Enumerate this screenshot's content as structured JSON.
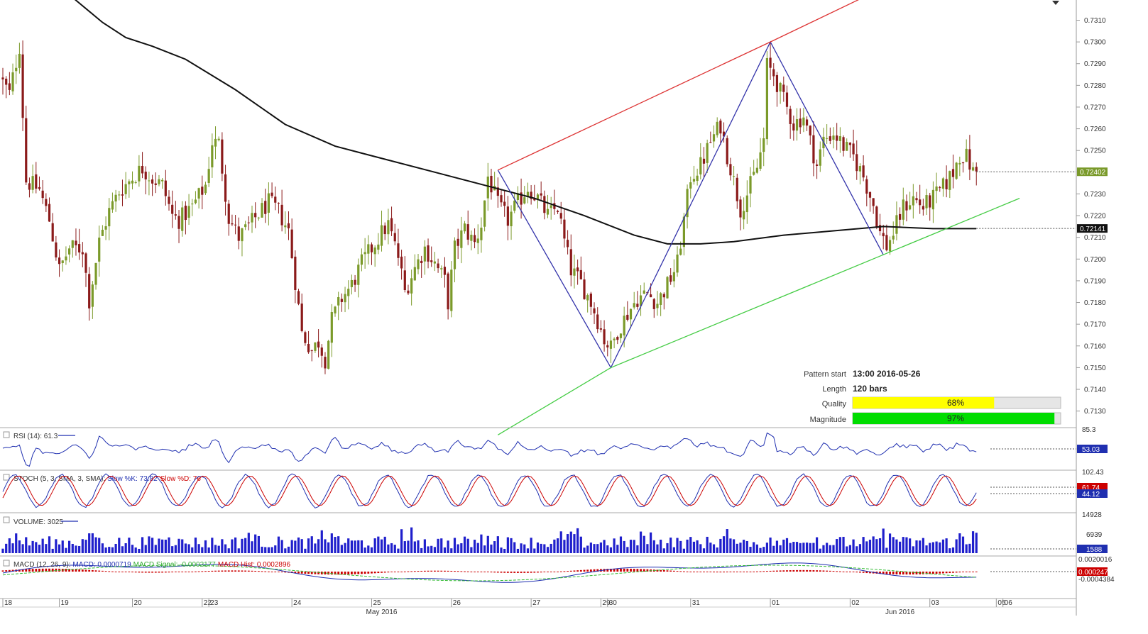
{
  "chart_data": {
    "type": "candlestick",
    "price_axis": {
      "ticks": [
        "0.7310",
        "0.7300",
        "0.7290",
        "0.7280",
        "0.7270",
        "0.7260",
        "0.7250",
        "0.7230",
        "0.7220",
        "0.7210",
        "0.7200",
        "0.7190",
        "0.7180",
        "0.7170",
        "0.7160",
        "0.7150",
        "0.7140",
        "0.7130"
      ],
      "range": [
        0.7124,
        0.7318
      ],
      "last_price": "0.72402",
      "ma_value": "0.72141"
    },
    "time_axis": {
      "day_labels": [
        {
          "label": "18",
          "bar": 0
        },
        {
          "label": "19",
          "bar": 17
        },
        {
          "label": "20",
          "bar": 39
        },
        {
          "label": "22",
          "bar": 60
        },
        {
          "label": "23",
          "bar": 62
        },
        {
          "label": "24",
          "bar": 87
        },
        {
          "label": "25",
          "bar": 111
        },
        {
          "label": "26",
          "bar": 135
        },
        {
          "label": "27",
          "bar": 159
        },
        {
          "label": "29",
          "bar": 180
        },
        {
          "label": "30",
          "bar": 182
        },
        {
          "label": "31",
          "bar": 207
        },
        {
          "label": "01",
          "bar": 231
        },
        {
          "label": "02",
          "bar": 255
        },
        {
          "label": "03",
          "bar": 279
        },
        {
          "label": "05",
          "bar": 299
        },
        {
          "label": "06",
          "bar": 301
        }
      ],
      "month_labels": [
        {
          "label": "May 2016",
          "bar": 114
        },
        {
          "label": "Jun 2016",
          "bar": 270
        }
      ],
      "total_bars": 313
    },
    "price_path": [
      [
        0,
        0.7284
      ],
      [
        3,
        0.7276
      ],
      [
        6,
        0.7298
      ],
      [
        8,
        0.7236
      ],
      [
        12,
        0.7232
      ],
      [
        15,
        0.7218
      ],
      [
        18,
        0.7195
      ],
      [
        21,
        0.7205
      ],
      [
        25,
        0.7205
      ],
      [
        27,
        0.7181
      ],
      [
        30,
        0.7208
      ],
      [
        33,
        0.7222
      ],
      [
        36,
        0.7231
      ],
      [
        39,
        0.7236
      ],
      [
        43,
        0.7242
      ],
      [
        46,
        0.7237
      ],
      [
        49,
        0.7234
      ],
      [
        52,
        0.722
      ],
      [
        54,
        0.7218
      ],
      [
        58,
        0.7224
      ],
      [
        62,
        0.7234
      ],
      [
        64,
        0.7254
      ],
      [
        66,
        0.7253
      ],
      [
        69,
        0.7219
      ],
      [
        72,
        0.721
      ],
      [
        75,
        0.7215
      ],
      [
        78,
        0.7221
      ],
      [
        81,
        0.7226
      ],
      [
        84,
        0.7222
      ],
      [
        87,
        0.7213
      ],
      [
        89,
        0.719
      ],
      [
        91,
        0.7166
      ],
      [
        94,
        0.7158
      ],
      [
        96,
        0.7162
      ],
      [
        98,
        0.7154
      ],
      [
        100,
        0.7172
      ],
      [
        103,
        0.7182
      ],
      [
        106,
        0.7188
      ],
      [
        109,
        0.7198
      ],
      [
        112,
        0.7205
      ],
      [
        115,
        0.7212
      ],
      [
        117,
        0.7216
      ],
      [
        120,
        0.7201
      ],
      [
        122,
        0.7185
      ],
      [
        125,
        0.7196
      ],
      [
        128,
        0.7205
      ],
      [
        131,
        0.7198
      ],
      [
        134,
        0.719
      ],
      [
        135,
        0.718
      ],
      [
        137,
        0.7205
      ],
      [
        140,
        0.7214
      ],
      [
        143,
        0.7207
      ],
      [
        145,
        0.7216
      ],
      [
        147,
        0.7238
      ],
      [
        150,
        0.7225
      ],
      [
        153,
        0.7218
      ],
      [
        156,
        0.7226
      ],
      [
        159,
        0.7233
      ],
      [
        162,
        0.7228
      ],
      [
        165,
        0.722
      ],
      [
        168,
        0.7224
      ],
      [
        170,
        0.7208
      ],
      [
        172,
        0.7195
      ],
      [
        175,
        0.7189
      ],
      [
        178,
        0.718
      ],
      [
        180,
        0.7172
      ],
      [
        182,
        0.7163
      ],
      [
        184,
        0.7159
      ],
      [
        186,
        0.7167
      ],
      [
        189,
        0.7175
      ],
      [
        192,
        0.7182
      ],
      [
        195,
        0.7184
      ],
      [
        198,
        0.718
      ],
      [
        201,
        0.7188
      ],
      [
        204,
        0.7198
      ],
      [
        206,
        0.7218
      ],
      [
        208,
        0.7238
      ],
      [
        211,
        0.7243
      ],
      [
        214,
        0.7254
      ],
      [
        217,
        0.7262
      ],
      [
        219,
        0.7248
      ],
      [
        221,
        0.7236
      ],
      [
        223,
        0.7223
      ],
      [
        225,
        0.723
      ],
      [
        228,
        0.7242
      ],
      [
        230,
        0.7255
      ],
      [
        231,
        0.7289
      ],
      [
        233,
        0.7285
      ],
      [
        236,
        0.7273
      ],
      [
        239,
        0.7262
      ],
      [
        242,
        0.7266
      ],
      [
        244,
        0.7254
      ],
      [
        246,
        0.7243
      ],
      [
        248,
        0.7255
      ],
      [
        251,
        0.7258
      ],
      [
        254,
        0.7252
      ],
      [
        257,
        0.7247
      ],
      [
        260,
        0.7238
      ],
      [
        263,
        0.7225
      ],
      [
        265,
        0.7212
      ],
      [
        267,
        0.7206
      ],
      [
        269,
        0.7212
      ],
      [
        272,
        0.7224
      ],
      [
        275,
        0.7228
      ],
      [
        278,
        0.7224
      ],
      [
        281,
        0.7228
      ],
      [
        284,
        0.7233
      ],
      [
        287,
        0.724
      ],
      [
        289,
        0.7248
      ],
      [
        291,
        0.7247
      ],
      [
        293,
        0.724
      ]
    ],
    "sma_path": [
      [
        19,
        0.7323
      ],
      [
        30,
        0.7309
      ],
      [
        37,
        0.7302
      ],
      [
        45,
        0.7298
      ],
      [
        55,
        0.7292
      ],
      [
        70,
        0.7278
      ],
      [
        85,
        0.7262
      ],
      [
        100,
        0.7252
      ],
      [
        115,
        0.7246
      ],
      [
        130,
        0.724
      ],
      [
        145,
        0.7234
      ],
      [
        160,
        0.7228
      ],
      [
        175,
        0.722
      ],
      [
        190,
        0.7211
      ],
      [
        200,
        0.7207
      ],
      [
        210,
        0.7207
      ],
      [
        220,
        0.7208
      ],
      [
        235,
        0.7211
      ],
      [
        250,
        0.7213
      ],
      [
        265,
        0.7215
      ],
      [
        280,
        0.7214
      ],
      [
        293,
        0.7214
      ]
    ],
    "pattern": {
      "zigzag": [
        [
          149,
          0.7241
        ],
        [
          183,
          0.715
        ],
        [
          231,
          0.73
        ],
        [
          265,
          0.7202
        ]
      ],
      "resistance_line": [
        [
          149,
          0.7241
        ],
        [
          231,
          0.73
        ],
        [
          261,
          0.7322
        ]
      ],
      "support_line": [
        [
          149,
          0.7119
        ],
        [
          183,
          0.715
        ],
        [
          265,
          0.7202
        ],
        [
          306,
          0.7228
        ]
      ]
    },
    "info_box": {
      "pattern_start_label": "Pattern start",
      "pattern_start_value": "13:00 2016-05-26",
      "length_label": "Length",
      "length_value": "120 bars",
      "quality_label": "Quality",
      "quality_value": "68%",
      "quality_fraction": 0.68,
      "magnitude_label": "Magnitude",
      "magnitude_value": "97%",
      "magnitude_fraction": 0.97
    },
    "panels": {
      "rsi": {
        "label_name": "RSI (14): ",
        "label_value": "61.3",
        "axis_top": "85.3",
        "value_tag": "53.03"
      },
      "stoch": {
        "label_name": "STOCH (5, 3, SMA, 3, SMA): ",
        "k_text": "Slow %K: 73.82",
        "d_text": "Slow %D: 76",
        "axis_top": "102.43",
        "tag_d": "61.74",
        "tag_k": "44.12"
      },
      "volume": {
        "label_name": "VOLUME: ",
        "label_value": "3025",
        "axis_top": "14928",
        "axis_mid": "6939",
        "value_tag": "1588"
      },
      "macd": {
        "label_name": "MACD (12, 26, 9): ",
        "macd_text": "MACD: 0.0000719",
        "signal_text": "MACD Signal: -0.0002177",
        "hist_text": "MACD Hist: 0.0002896",
        "axis_top": "0.0020016",
        "axis_bottom": "-0.0004384",
        "value_tag": "0.0002474"
      }
    },
    "colors": {
      "up_candle": "#7b9a2a",
      "down_candle": "#8b1a1a",
      "sma_line": "#111111",
      "zigzag": "#3333aa",
      "resistance": "#dd3333",
      "support": "#44cc44",
      "price_tag": "#7a9a2a",
      "ma_tag": "#111111",
      "indicator_tag": "#1f2fb0",
      "stoch_tag_d": "#cc0000",
      "quality_fill": "#ffff00",
      "magnitude_fill": "#00dd00",
      "volume_bar": "#1f1fcc",
      "macd_hist": "#cc0000",
      "macd_signal": "#33bb33"
    }
  }
}
